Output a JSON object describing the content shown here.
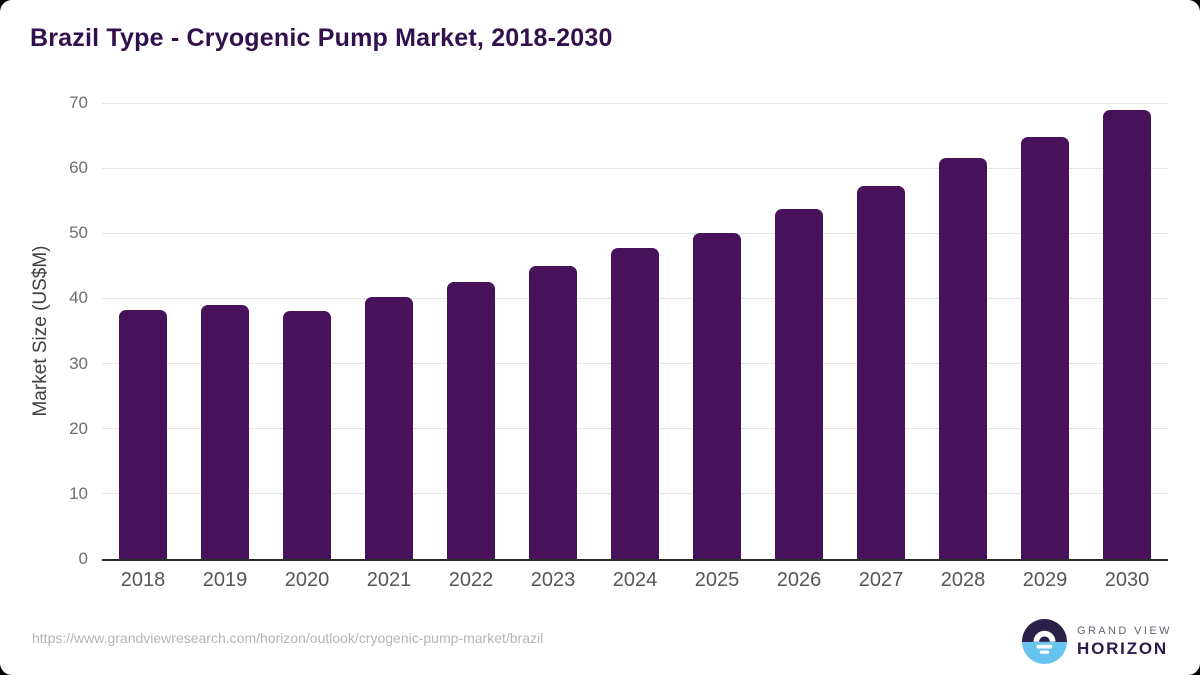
{
  "page": {
    "title": "Brazil Type - Cryogenic Pump Market, 2018-2030"
  },
  "chart_data": {
    "type": "bar",
    "title": "Brazil Type - Cryogenic Pump Market, 2018-2030",
    "categories": [
      "2018",
      "2019",
      "2020",
      "2021",
      "2022",
      "2023",
      "2024",
      "2025",
      "2026",
      "2027",
      "2028",
      "2029",
      "2030"
    ],
    "values": [
      38.2,
      39.0,
      38.0,
      40.2,
      42.6,
      45.0,
      47.7,
      50.0,
      53.7,
      57.2,
      61.5,
      64.8,
      68.9
    ],
    "xlabel": "",
    "ylabel": "Market Size (US$M)",
    "ylim": [
      0,
      70
    ],
    "yticks": [
      0,
      10,
      20,
      30,
      40,
      50,
      60,
      70
    ],
    "grid": true,
    "legend": false,
    "bar_color": "#48125a"
  },
  "footer": {
    "source_url": "https://www.grandviewresearch.com/horizon/outlook/cryogenic-pump-market/brazil"
  },
  "logo": {
    "brand_top": "GRAND VIEW",
    "brand_bottom": "HORIZON"
  },
  "colors": {
    "title_text": "#32104d",
    "bar": "#48125a",
    "gridline": "#e6e6e8",
    "axis_baseline": "#2a2a2a",
    "tick_text": "#6e6e6e",
    "x_tick_text": "#55565a",
    "url_text": "#b4b4b4",
    "logo_dark_half": "#2b2148",
    "logo_blue_half": "#66c4ef"
  }
}
